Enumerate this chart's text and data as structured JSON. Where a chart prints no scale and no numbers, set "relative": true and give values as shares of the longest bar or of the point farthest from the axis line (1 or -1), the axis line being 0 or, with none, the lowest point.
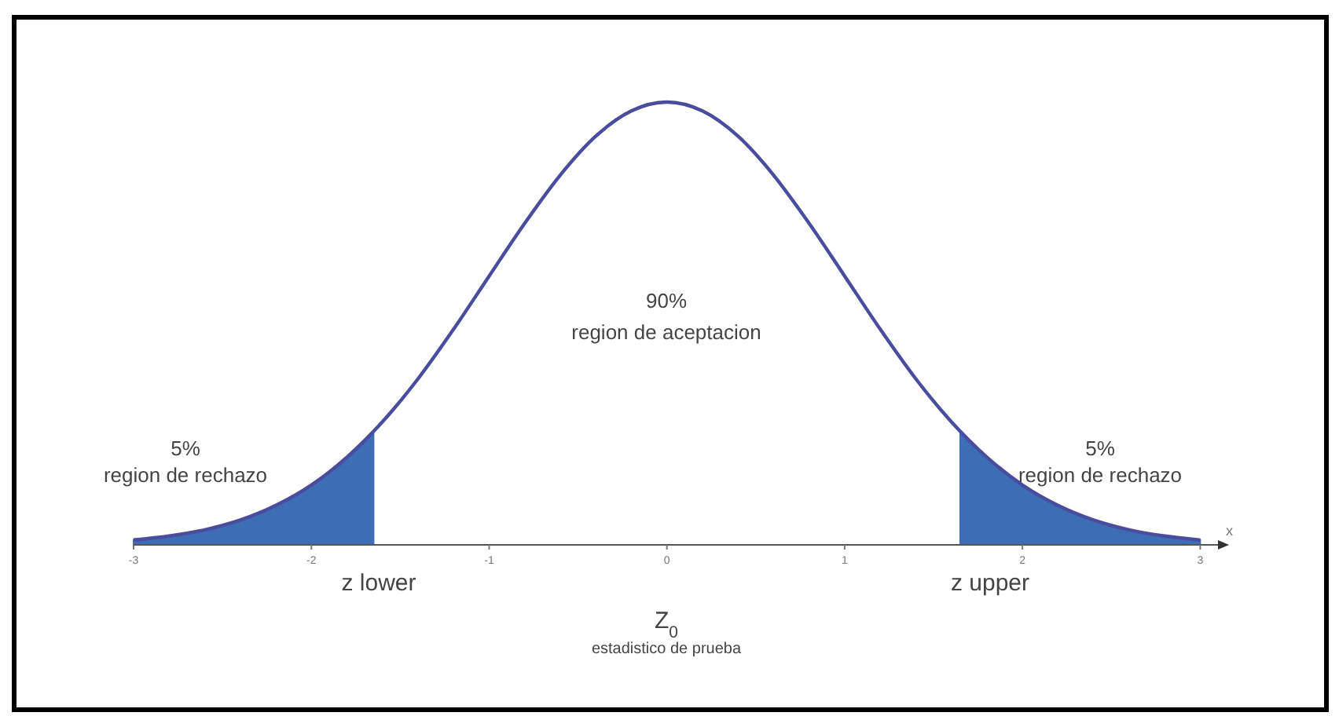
{
  "chart_data": {
    "type": "line",
    "relative": true,
    "xlabel": "x",
    "xlim": [
      -3,
      3.1
    ],
    "xticks": [
      -3,
      -2,
      -1,
      0,
      1,
      2,
      3
    ],
    "x": [
      -3,
      -2.8,
      -2.6,
      -2.4,
      -2.2,
      -2,
      -1.8,
      -1.6,
      -1.4,
      -1.2,
      -1,
      -0.8,
      -0.6,
      -0.4,
      -0.2,
      0,
      0.2,
      0.4,
      0.6,
      0.8,
      1,
      1.2,
      1.4,
      1.6,
      1.8,
      2,
      2.2,
      2.4,
      2.6,
      2.8,
      3
    ],
    "series": [
      {
        "type": "area",
        "color": "#3d6db5",
        "x": [
          -3,
          -2.8,
          -2.6,
          -2.4,
          -2.2,
          -2,
          -1.8,
          -1.65
        ],
        "values": [
          0.011,
          0.02,
          0.034,
          0.056,
          0.089,
          0.135,
          0.198,
          0.256
        ]
      },
      {
        "type": "area",
        "color": "#3d6db5",
        "x": [
          1.65,
          1.8,
          2,
          2.2,
          2.4,
          2.6,
          2.8,
          3
        ],
        "values": [
          0.256,
          0.198,
          0.135,
          0.089,
          0.056,
          0.034,
          0.02,
          0.011
        ]
      },
      {
        "color": "#4a4c9e",
        "values": [
          0.011,
          0.02,
          0.034,
          0.056,
          0.089,
          0.135,
          0.198,
          0.278,
          0.375,
          0.487,
          0.607,
          0.726,
          0.835,
          0.923,
          0.98,
          1,
          0.98,
          0.923,
          0.835,
          0.726,
          0.607,
          0.487,
          0.375,
          0.278,
          0.198,
          0.135,
          0.089,
          0.056,
          0.034,
          0.02,
          0.011
        ]
      }
    ],
    "annotations": [
      "5%\nregion de rechazo",
      "90%\n\nregion de aceptacion",
      "5%\nregion de rechazo",
      "z  lower",
      "z upper",
      "Z$_{0}$",
      "estadistico de prueba"
    ]
  }
}
